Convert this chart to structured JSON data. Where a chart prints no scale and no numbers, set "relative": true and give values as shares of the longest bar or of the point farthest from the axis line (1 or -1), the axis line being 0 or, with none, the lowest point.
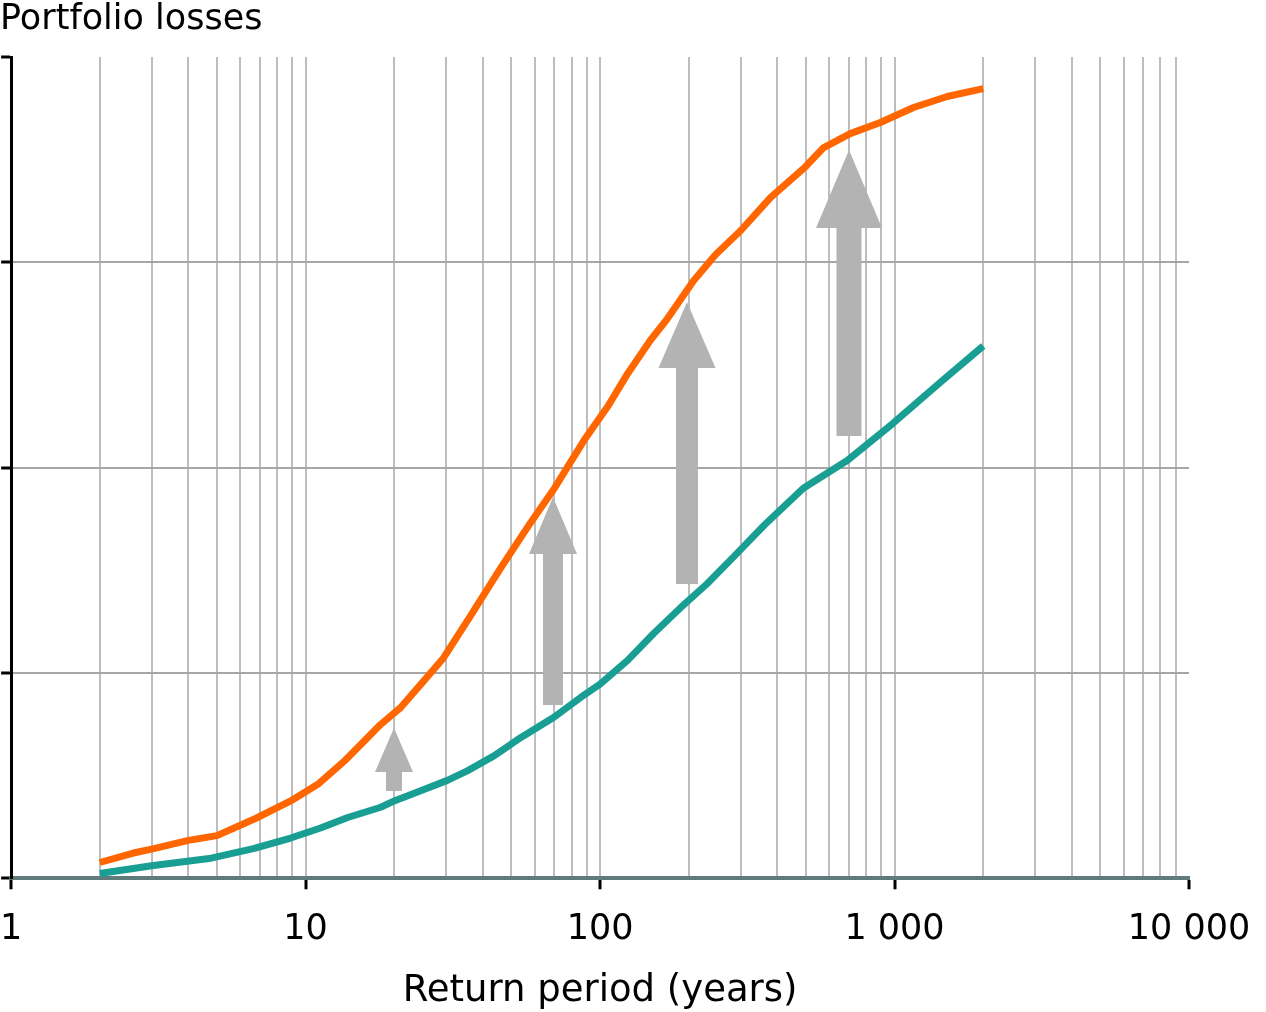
{
  "chart_data": {
    "type": "line",
    "ylabel": "Portfolio losses",
    "xlabel": "Return period (years)",
    "log": "x",
    "relative": true,
    "grid": true,
    "xlim": [
      1,
      10000
    ],
    "xticks": [
      1,
      {
        "value": 2,
        "label": null
      },
      {
        "value": 3,
        "label": null
      },
      {
        "value": 4,
        "label": null
      },
      {
        "value": 5,
        "label": null
      },
      {
        "value": 6,
        "label": null
      },
      {
        "value": 7,
        "label": null
      },
      {
        "value": 8,
        "label": null
      },
      {
        "value": 9,
        "label": null
      },
      10,
      {
        "value": 20,
        "label": null
      },
      {
        "value": 30,
        "label": null
      },
      {
        "value": 40,
        "label": null
      },
      {
        "value": 50,
        "label": null
      },
      {
        "value": 60,
        "label": null
      },
      {
        "value": 70,
        "label": null
      },
      {
        "value": 80,
        "label": null
      },
      {
        "value": 90,
        "label": null
      },
      100,
      {
        "value": 200,
        "label": null
      },
      {
        "value": 300,
        "label": null
      },
      {
        "value": 400,
        "label": null
      },
      {
        "value": 500,
        "label": null
      },
      {
        "value": 600,
        "label": null
      },
      {
        "value": 700,
        "label": null
      },
      {
        "value": 800,
        "label": null
      },
      {
        "value": 900,
        "label": null
      },
      {
        "value": 1000,
        "label": "1 000"
      },
      {
        "value": 2000,
        "label": null
      },
      {
        "value": 3000,
        "label": null
      },
      {
        "value": 4000,
        "label": null
      },
      {
        "value": 5000,
        "label": null
      },
      {
        "value": 6000,
        "label": null
      },
      {
        "value": 7000,
        "label": null
      },
      {
        "value": 8000,
        "label": null
      },
      {
        "value": 9000,
        "label": null
      },
      {
        "value": 10000,
        "label": "10 000"
      }
    ],
    "series": [
      {
        "color": "#ff6600",
        "x": [
          2,
          2.6,
          3,
          4,
          5,
          6.7,
          8.9,
          11,
          13.5,
          18,
          21,
          25.2,
          29.4,
          36.4,
          46,
          58,
          70,
          88,
          106,
          124,
          148,
          168,
          208,
          247,
          300,
          379,
          498,
          573,
          707,
          895,
          1160,
          1510,
          2000
        ],
        "values": [
          0.02,
          0.032,
          0.037,
          0.048,
          0.054,
          0.075,
          0.098,
          0.119,
          0.148,
          0.195,
          0.216,
          0.25,
          0.279,
          0.333,
          0.393,
          0.45,
          0.494,
          0.554,
          0.597,
          0.639,
          0.681,
          0.707,
          0.757,
          0.79,
          0.82,
          0.862,
          0.901,
          0.925,
          0.943,
          0.957,
          0.976,
          0.99,
          1
        ]
      },
      {
        "color": "#199e94",
        "x": [
          2,
          3,
          4.7,
          6.7,
          8.9,
          11.3,
          13.9,
          18,
          20,
          24.6,
          30.3,
          35.4,
          43.6,
          53.7,
          69.7,
          85.9,
          100,
          124,
          152,
          188,
          231,
          284,
          363,
          490,
          691,
          987,
          1430,
          2000
        ],
        "values": [
          0.006,
          0.016,
          0.025,
          0.038,
          0.051,
          0.064,
          0.077,
          0.09,
          0.098,
          0.111,
          0.124,
          0.136,
          0.155,
          0.178,
          0.204,
          0.229,
          0.246,
          0.276,
          0.31,
          0.343,
          0.373,
          0.407,
          0.448,
          0.494,
          0.529,
          0.576,
          0.628,
          0.674
        ]
      }
    ]
  }
}
